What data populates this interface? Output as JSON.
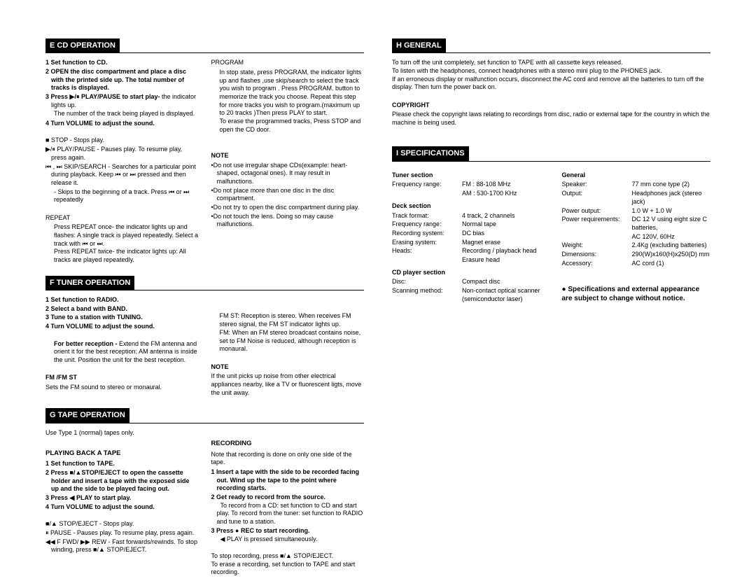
{
  "doc": {
    "background": "#ffffff",
    "header_bg": "#000000",
    "header_fg": "#ffffff",
    "font_size_body": 9,
    "font_size_header": 11
  },
  "sections": {
    "E": {
      "title": "E  CD OPERATION",
      "left": {
        "steps": [
          "1 Set function to CD.",
          "2 OPEN the disc compartment and place a disc with the printed side up. The total number of tracks is displayed.",
          "3 Press ▶/⏸ PLAY/PAUSE to start play- the indicator lights up. The number of the track being played is displayed.",
          "4 Turn VOLUME to adjust the sound."
        ],
        "items": [
          "■ STOP - Stops play.",
          "▶/⏸ PLAY/PAUSE - Pauses play. To resume play, press again.",
          "⏮ , ⏭ SKIP/SEARCH - Searches for a particular point during playback. Keep ⏮ or ⏭ pressed and then release it.",
          "- Skips to the beginning of a track. Press  ⏮ or  ⏭ repeatedly"
        ],
        "repeat_title": "REPEAT",
        "repeat_body": "Press REPEAT once-  the indicator lights up and flashes: A single track is played repeatedly. Select a track with ⏮ or ⏭.\nPress REPEAT twice-  the indicator lights up: All tracks are played repeatedly."
      },
      "right": {
        "program_title": "PROGRAM",
        "program_body": "In stop state, press PROGRAM, the indicator lights up and flashes ,use skip/search to select the track you wish to program . Press PROGRAM. button to memorize the track you choose. Repeat this step for more tracks you wish to program.(maximum up to 20 tracks )Then press PLAY to start.\nTo erase the programmed tracks, Press STOP and open the CD door.",
        "note_title": "NOTE",
        "notes": [
          "Do not use irregular shape CDs(example: heart-shaped, octagonal ones). It may result in malfunctions.",
          "Do not place more than one disc in the disc compartment.",
          "Do not try to open the disc compartment during play.",
          "Do not touch the lens. Doing so may cause malfunctions."
        ]
      }
    },
    "F": {
      "title": "F  TUNER OPERATION",
      "left": {
        "steps": [
          "1 Set function to RADIO.",
          "2 Select a band with BAND.",
          "3 Tune to a station with TUNING.",
          "4 Turn VOLUME to adjust the sound."
        ],
        "reception": "For better reception - Extend the  FM antenna and orient it for the best reception;  AM  antenna is inside the unit. Position the unit for the best reception.",
        "fmst_title": "FM /FM ST",
        "fmst_body": "Sets the FM sound to stereo or monaural."
      },
      "right": {
        "body": "FM ST: Reception is stereo. When receives  FM stereo signal, the FM ST indicator lights up.\nFM: When an FM stereo broadcast contains noise, set to FM  Noise is reduced, although reception is monaural.",
        "note_title": "NOTE",
        "note_body": "If the unit picks up noise from other electrical appliances nearby, like a TV or fluorescent ligts, move the unit away."
      }
    },
    "G": {
      "title": "G  TAPE OPERATION",
      "intro": "Use Type 1 (normal) tapes only.",
      "left": {
        "playing_title": "PLAYING BACK A TAPE",
        "steps": [
          "1 Set function  to TAPE.",
          "2 Press ■/▲STOP/EJECT to open the cassette holder and insert a tape with the exposed side up and the side to be played facing out.",
          "3 Press ◀ PLAY to start play.",
          "4 Turn VOLUME to adjust the sound."
        ],
        "items": [
          "■/▲ STOP/EJECT - Stops play.",
          "⏸ PAUSE - Pauses play. To resume play, press again.",
          "◀◀ F FWD/ ▶▶ REW - Fast forwards/rewinds. To stop winding, press ■/▲ STOP/EJECT."
        ]
      },
      "right": {
        "rec_title": "RECORDING",
        "rec_intro": "Note that recording is done on only one side of the tape.",
        "steps": [
          "1 Insert a tape with the side to be recorded facing out. Wind up the tape to the point where recording starts.",
          "2 Get ready to record from the source. To record from a CD: set function to CD and start play. To record from the tuner: set function to RADIO and tune to a station.",
          "3 Press ● REC to start recording. ◀ PLAY is pressed simultaneously."
        ],
        "footer": "To stop recording, press ■/▲ STOP/EJECT.\nTo erase a recording, set function to TAPE and start recording."
      }
    },
    "H": {
      "title": "H  GENERAL",
      "body": "To turn off the unit completely, set function to  TAPE with all cassette keys released.\nTo listen with the headphones, connect headphones with a stereo mini plug to the  PHONES  jack.\nIf an erroneous display or malfunction occurs, disconnect the AC cord and remove all the batteries to turn off the display. Then turn the power back on.",
      "copyright_title": "COPYRIGHT",
      "copyright_body": "Please check the copyright laws relating to recordings from disc, radio or external tape for the country in which the machine is being used."
    },
    "I": {
      "title": "I  SPECIFICATIONS",
      "left": {
        "tuner_title": "Tuner section",
        "tuner": [
          {
            "k": "Frequency range:",
            "v": "FM :   88-108 MHz"
          },
          {
            "k": "",
            "v": "AM :   530-1700 KHz"
          }
        ],
        "deck_title": "Deck section",
        "deck": [
          {
            "k": "Track format:",
            "v": "4 track, 2 channels"
          },
          {
            "k": "Frequency range:",
            "v": "Normal tape"
          },
          {
            "k": "Recording system:",
            "v": "DC bias"
          },
          {
            "k": "Erasing system:",
            "v": "Magnet erase"
          },
          {
            "k": "Heads:",
            "v": "Recording / playback head"
          },
          {
            "k": "",
            "v": "Erasure head"
          }
        ],
        "cd_title": "CD player section",
        "cd": [
          {
            "k": "Disc:",
            "v": "Compact disc"
          },
          {
            "k": "Scanning method:",
            "v": "Non-contact optical scanner (semiconductor laser)"
          }
        ]
      },
      "right": {
        "gen_title": "General",
        "gen": [
          {
            "k": "Speaker:",
            "v": "77 mm cone type (2)"
          },
          {
            "k": "Output:",
            "v": "Headphones jack (stereo jack)"
          },
          {
            "k": "Power output:",
            "v": "1.0 W + 1.0 W"
          },
          {
            "k": "Power requirements:",
            "v": "DC 12 V using eight size C batteries,"
          },
          {
            "k": "",
            "v": "AC  120V, 60Hz"
          },
          {
            "k": "Weight:",
            "v": "2.4Kg (excluding batteries)"
          },
          {
            "k": "Dimensions:",
            "v": "290(W)x160(H)x250(D) mm"
          },
          {
            "k": "Accessory:",
            "v": "AC cord (1)"
          }
        ],
        "notice": "● Specifications and external appearance are subject to change without notice."
      }
    }
  }
}
